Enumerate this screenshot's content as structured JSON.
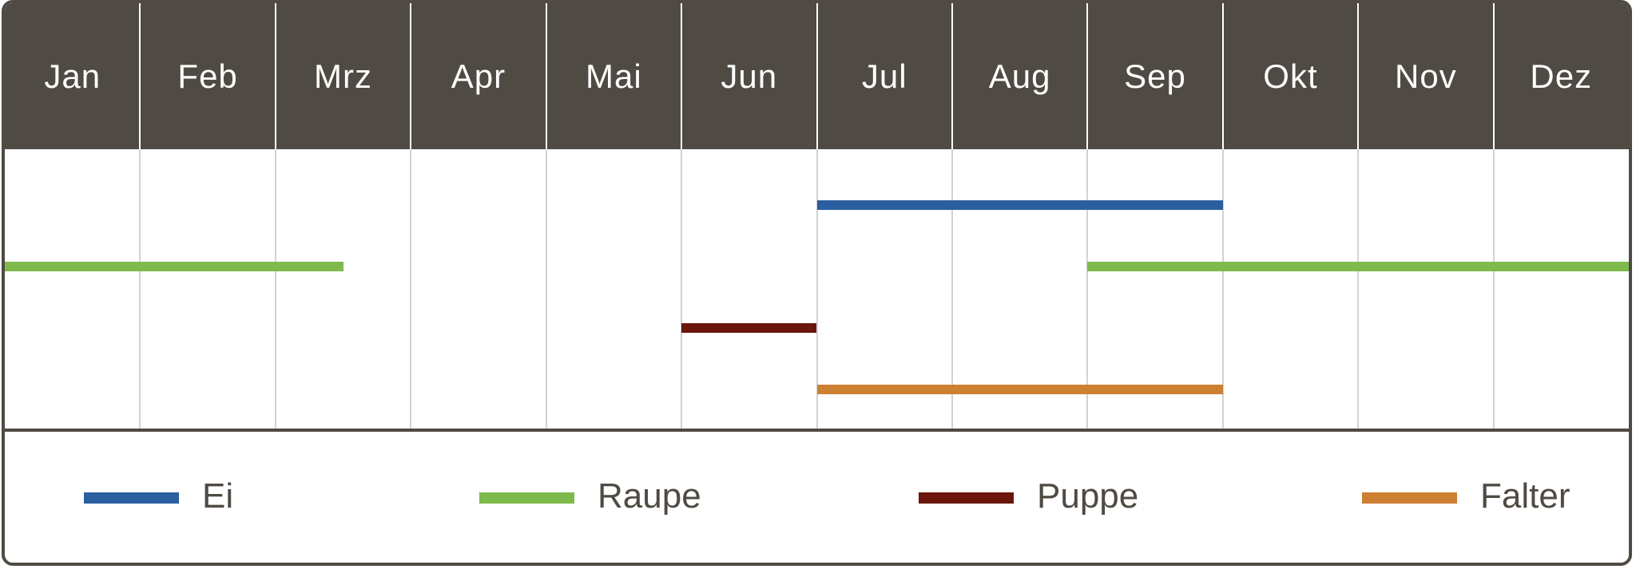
{
  "chart_data": {
    "type": "gantt",
    "categories": [
      "Jan",
      "Feb",
      "Mrz",
      "Apr",
      "Mai",
      "Jun",
      "Jul",
      "Aug",
      "Sep",
      "Okt",
      "Nov",
      "Dez"
    ],
    "series": [
      {
        "name": "Ei",
        "color": "#2a5fa0",
        "ranges": [
          [
            6,
            9
          ]
        ]
      },
      {
        "name": "Raupe",
        "color": "#7dba4b",
        "ranges": [
          [
            0,
            2.5
          ],
          [
            8,
            12
          ]
        ]
      },
      {
        "name": "Puppe",
        "color": "#6b150b",
        "ranges": [
          [
            5,
            6
          ]
        ]
      },
      {
        "name": "Falter",
        "color": "#cd7f32",
        "ranges": [
          [
            6,
            9
          ]
        ]
      }
    ],
    "x_unit": "month index (0 = start of Jan, 12 = end of Dez)",
    "legend_position": "bottom",
    "grid": true
  },
  "colors": {
    "header_bg": "#4f4a43",
    "header_text": "#ffffff",
    "grid": "#d2d2d2",
    "frame": "#4f4a43",
    "legend_text": "#4f4a43"
  }
}
